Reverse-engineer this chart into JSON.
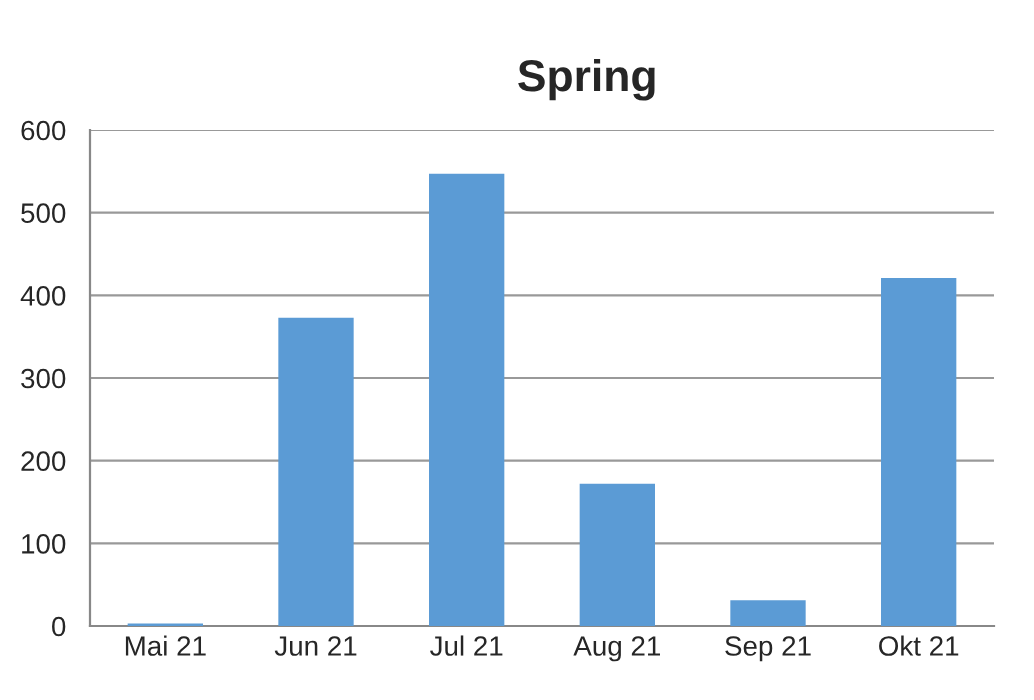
{
  "chart_data": {
    "type": "bar",
    "title": "Spring",
    "categories": [
      "Mai 21",
      "Jun 21",
      "Jul 21",
      "Aug 21",
      "Sep 21",
      "Okt 21"
    ],
    "values": [
      3,
      373,
      547,
      172,
      31,
      421
    ],
    "color": "#5b9bd5",
    "ylim": [
      0,
      600
    ],
    "yticks": [
      0,
      100,
      200,
      300,
      400,
      500,
      600
    ],
    "grid": "y",
    "legend": false
  }
}
